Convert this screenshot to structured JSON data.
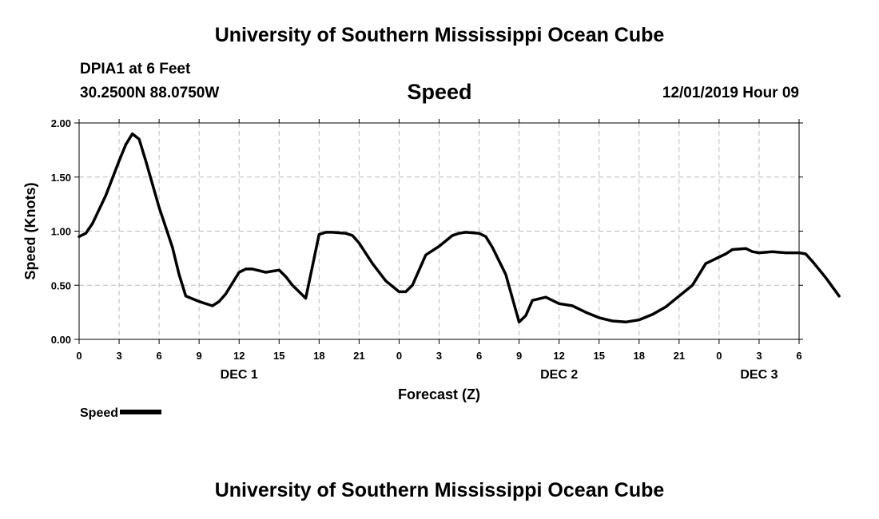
{
  "header": {
    "title": "University of Southern Mississippi Ocean Cube",
    "station": "DPIA1 at 6 Feet",
    "coords": "30.2500N 88.0750W",
    "datetime": "12/01/2019 Hour 09"
  },
  "footer": {
    "title": "University of Southern Mississippi Ocean Cube"
  },
  "legend": {
    "label": "Speed"
  },
  "chart_data": {
    "type": "line",
    "title": "Speed",
    "xlabel": "Forecast (Z)",
    "ylabel": "Speed (Knots)",
    "ylim": [
      0,
      2
    ],
    "yticks": [
      "0.00",
      "0.50",
      "1.00",
      "1.50",
      "2.00"
    ],
    "xticks": [
      "0",
      "3",
      "6",
      "9",
      "12",
      "15",
      "18",
      "21",
      "0",
      "3",
      "6",
      "9",
      "12",
      "15",
      "18",
      "21",
      "0",
      "3",
      "6"
    ],
    "day_labels": [
      {
        "label": "DEC 1",
        "at_hour": 12
      },
      {
        "label": "DEC 2",
        "at_hour": 36
      },
      {
        "label": "DEC 3",
        "at_hour": 51
      }
    ],
    "grid": true,
    "line_color": "#000000",
    "series": [
      {
        "name": "Speed",
        "x": [
          0,
          0.5,
          1,
          2,
          3,
          3.5,
          4,
          4.5,
          5,
          6,
          7,
          7.5,
          8,
          9,
          10,
          10.5,
          11,
          12,
          12.5,
          13,
          14,
          14.5,
          15,
          15.5,
          16,
          17,
          18,
          18.5,
          19,
          20,
          20.5,
          21,
          22,
          23,
          24,
          24.5,
          25,
          26,
          27,
          28,
          28.5,
          29,
          30,
          30.5,
          31,
          32,
          33,
          33.5,
          34,
          35,
          36,
          36.5,
          37,
          37.5,
          38,
          39,
          40,
          41,
          42,
          43,
          44,
          45,
          45.5,
          46,
          47,
          47.5,
          48,
          48.5,
          49,
          50,
          50.5,
          51,
          52,
          53,
          54,
          54.5,
          55,
          56,
          57
        ],
        "y": [
          0.95,
          0.98,
          1.07,
          1.33,
          1.65,
          1.8,
          1.9,
          1.85,
          1.65,
          1.22,
          0.85,
          0.6,
          0.4,
          0.35,
          0.31,
          0.35,
          0.42,
          0.62,
          0.65,
          0.65,
          0.62,
          0.63,
          0.64,
          0.58,
          0.5,
          0.38,
          0.97,
          0.99,
          0.99,
          0.98,
          0.96,
          0.89,
          0.7,
          0.54,
          0.44,
          0.44,
          0.5,
          0.78,
          0.86,
          0.96,
          0.98,
          0.99,
          0.98,
          0.95,
          0.85,
          0.6,
          0.16,
          0.22,
          0.36,
          0.39,
          0.33,
          0.32,
          0.31,
          0.28,
          0.25,
          0.2,
          0.17,
          0.16,
          0.18,
          0.23,
          0.3,
          0.4,
          0.45,
          0.5,
          0.7,
          0.73,
          0.76,
          0.79,
          0.83,
          0.84,
          0.81,
          0.8,
          0.81,
          0.8,
          0.8,
          0.79,
          0.72,
          0.57,
          0.4
        ]
      }
    ]
  }
}
